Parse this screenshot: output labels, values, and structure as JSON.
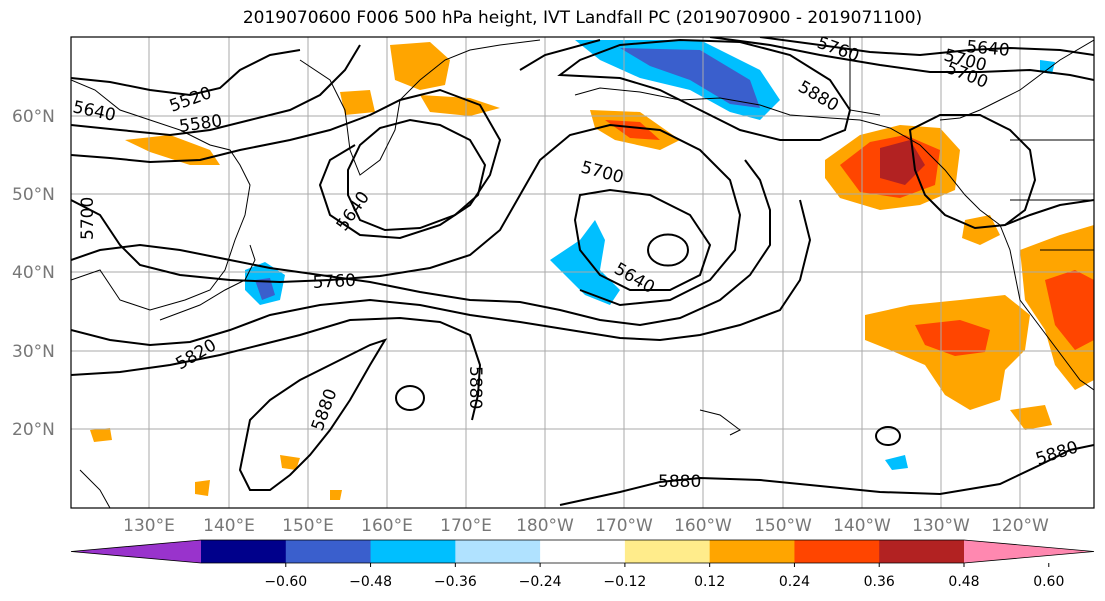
{
  "title": "2019070600 F006 500 hPa height, IVT Landfall PC (2019070900 - 2019071100)",
  "map": {
    "lat_labels": [
      "60°N",
      "50°N",
      "40°N",
      "30°N",
      "20°N"
    ],
    "lon_labels": [
      "130°E",
      "140°E",
      "150°E",
      "160°E",
      "170°E",
      "180°W",
      "170°W",
      "160°W",
      "150°W",
      "140°W",
      "130°W",
      "120°W"
    ],
    "contour_labels": [
      "5520",
      "5580",
      "5640",
      "5640",
      "5640",
      "5700",
      "5700",
      "5700",
      "5760",
      "5760",
      "5820",
      "5880",
      "5880",
      "5880",
      "5880",
      "5880",
      "5640",
      "5700"
    ]
  },
  "colorbar": {
    "colors": [
      "#9933cc",
      "#00008b",
      "#3a5fcd",
      "#00bfff",
      "#b0e2ff",
      "#ffffff",
      "#ffec8b",
      "#ffa500",
      "#ff4500",
      "#b22222",
      "#ff88b0"
    ],
    "ticks": [
      "−0.60",
      "−0.48",
      "−0.36",
      "−0.24",
      "−0.12",
      "0.12",
      "0.24",
      "0.36",
      "0.48",
      "0.60"
    ]
  }
}
